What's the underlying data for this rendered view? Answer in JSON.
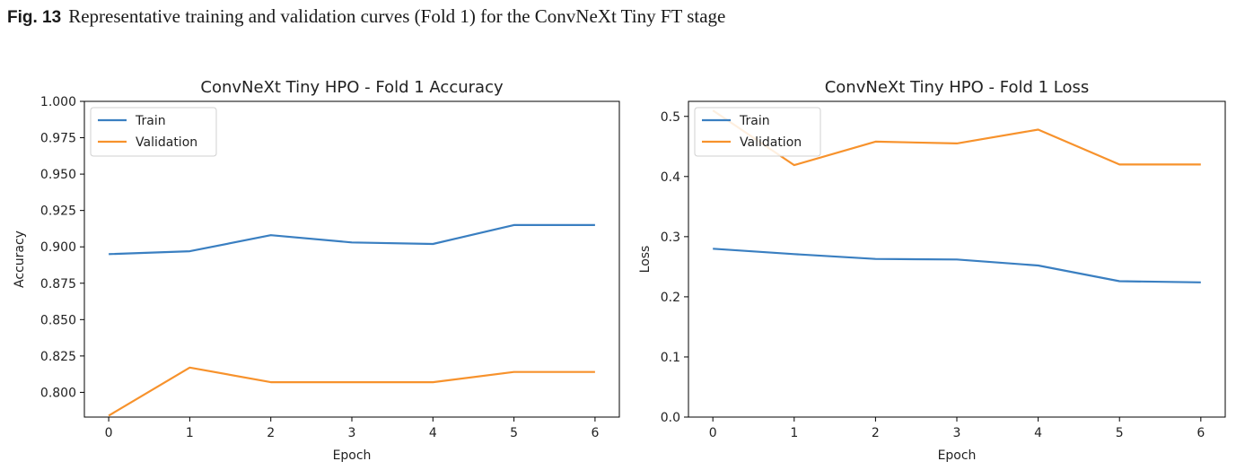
{
  "figure": {
    "label": "Fig. 13",
    "caption": "Representative training and validation curves (Fold 1) for the ConvNeXt Tiny FT stage"
  },
  "colors": {
    "train": "#3a7fc1",
    "validation": "#f7922c"
  },
  "chart_data": [
    {
      "type": "line",
      "title": "ConvNeXt Tiny HPO - Fold 1 Accuracy",
      "xlabel": "Epoch",
      "ylabel": "Accuracy",
      "x": [
        0,
        1,
        2,
        3,
        4,
        5,
        6
      ],
      "xlim": [
        -0.3,
        6.3
      ],
      "ylim": [
        0.783,
        1.0
      ],
      "xticks": [
        "0",
        "1",
        "2",
        "3",
        "4",
        "5",
        "6"
      ],
      "yticks": [
        "0.800",
        "0.825",
        "0.850",
        "0.875",
        "0.900",
        "0.925",
        "0.950",
        "0.975",
        "1.000"
      ],
      "grid": false,
      "legend": "upper left",
      "series": [
        {
          "name": "Train",
          "values": [
            0.895,
            0.897,
            0.908,
            0.903,
            0.902,
            0.915,
            0.915
          ]
        },
        {
          "name": "Validation",
          "values": [
            0.784,
            0.817,
            0.807,
            0.807,
            0.807,
            0.814,
            0.814
          ]
        }
      ]
    },
    {
      "type": "line",
      "title": "ConvNeXt Tiny HPO - Fold 1 Loss",
      "xlabel": "Epoch",
      "ylabel": "Loss",
      "x": [
        0,
        1,
        2,
        3,
        4,
        5,
        6
      ],
      "xlim": [
        -0.3,
        6.3
      ],
      "ylim": [
        0.0,
        0.525
      ],
      "xticks": [
        "0",
        "1",
        "2",
        "3",
        "4",
        "5",
        "6"
      ],
      "yticks": [
        "0.0",
        "0.1",
        "0.2",
        "0.3",
        "0.4",
        "0.5"
      ],
      "grid": false,
      "legend": "upper left",
      "series": [
        {
          "name": "Train",
          "values": [
            0.28,
            0.271,
            0.263,
            0.262,
            0.252,
            0.226,
            0.224
          ]
        },
        {
          "name": "Validation",
          "values": [
            0.51,
            0.419,
            0.458,
            0.455,
            0.478,
            0.42,
            0.42
          ]
        }
      ]
    }
  ]
}
